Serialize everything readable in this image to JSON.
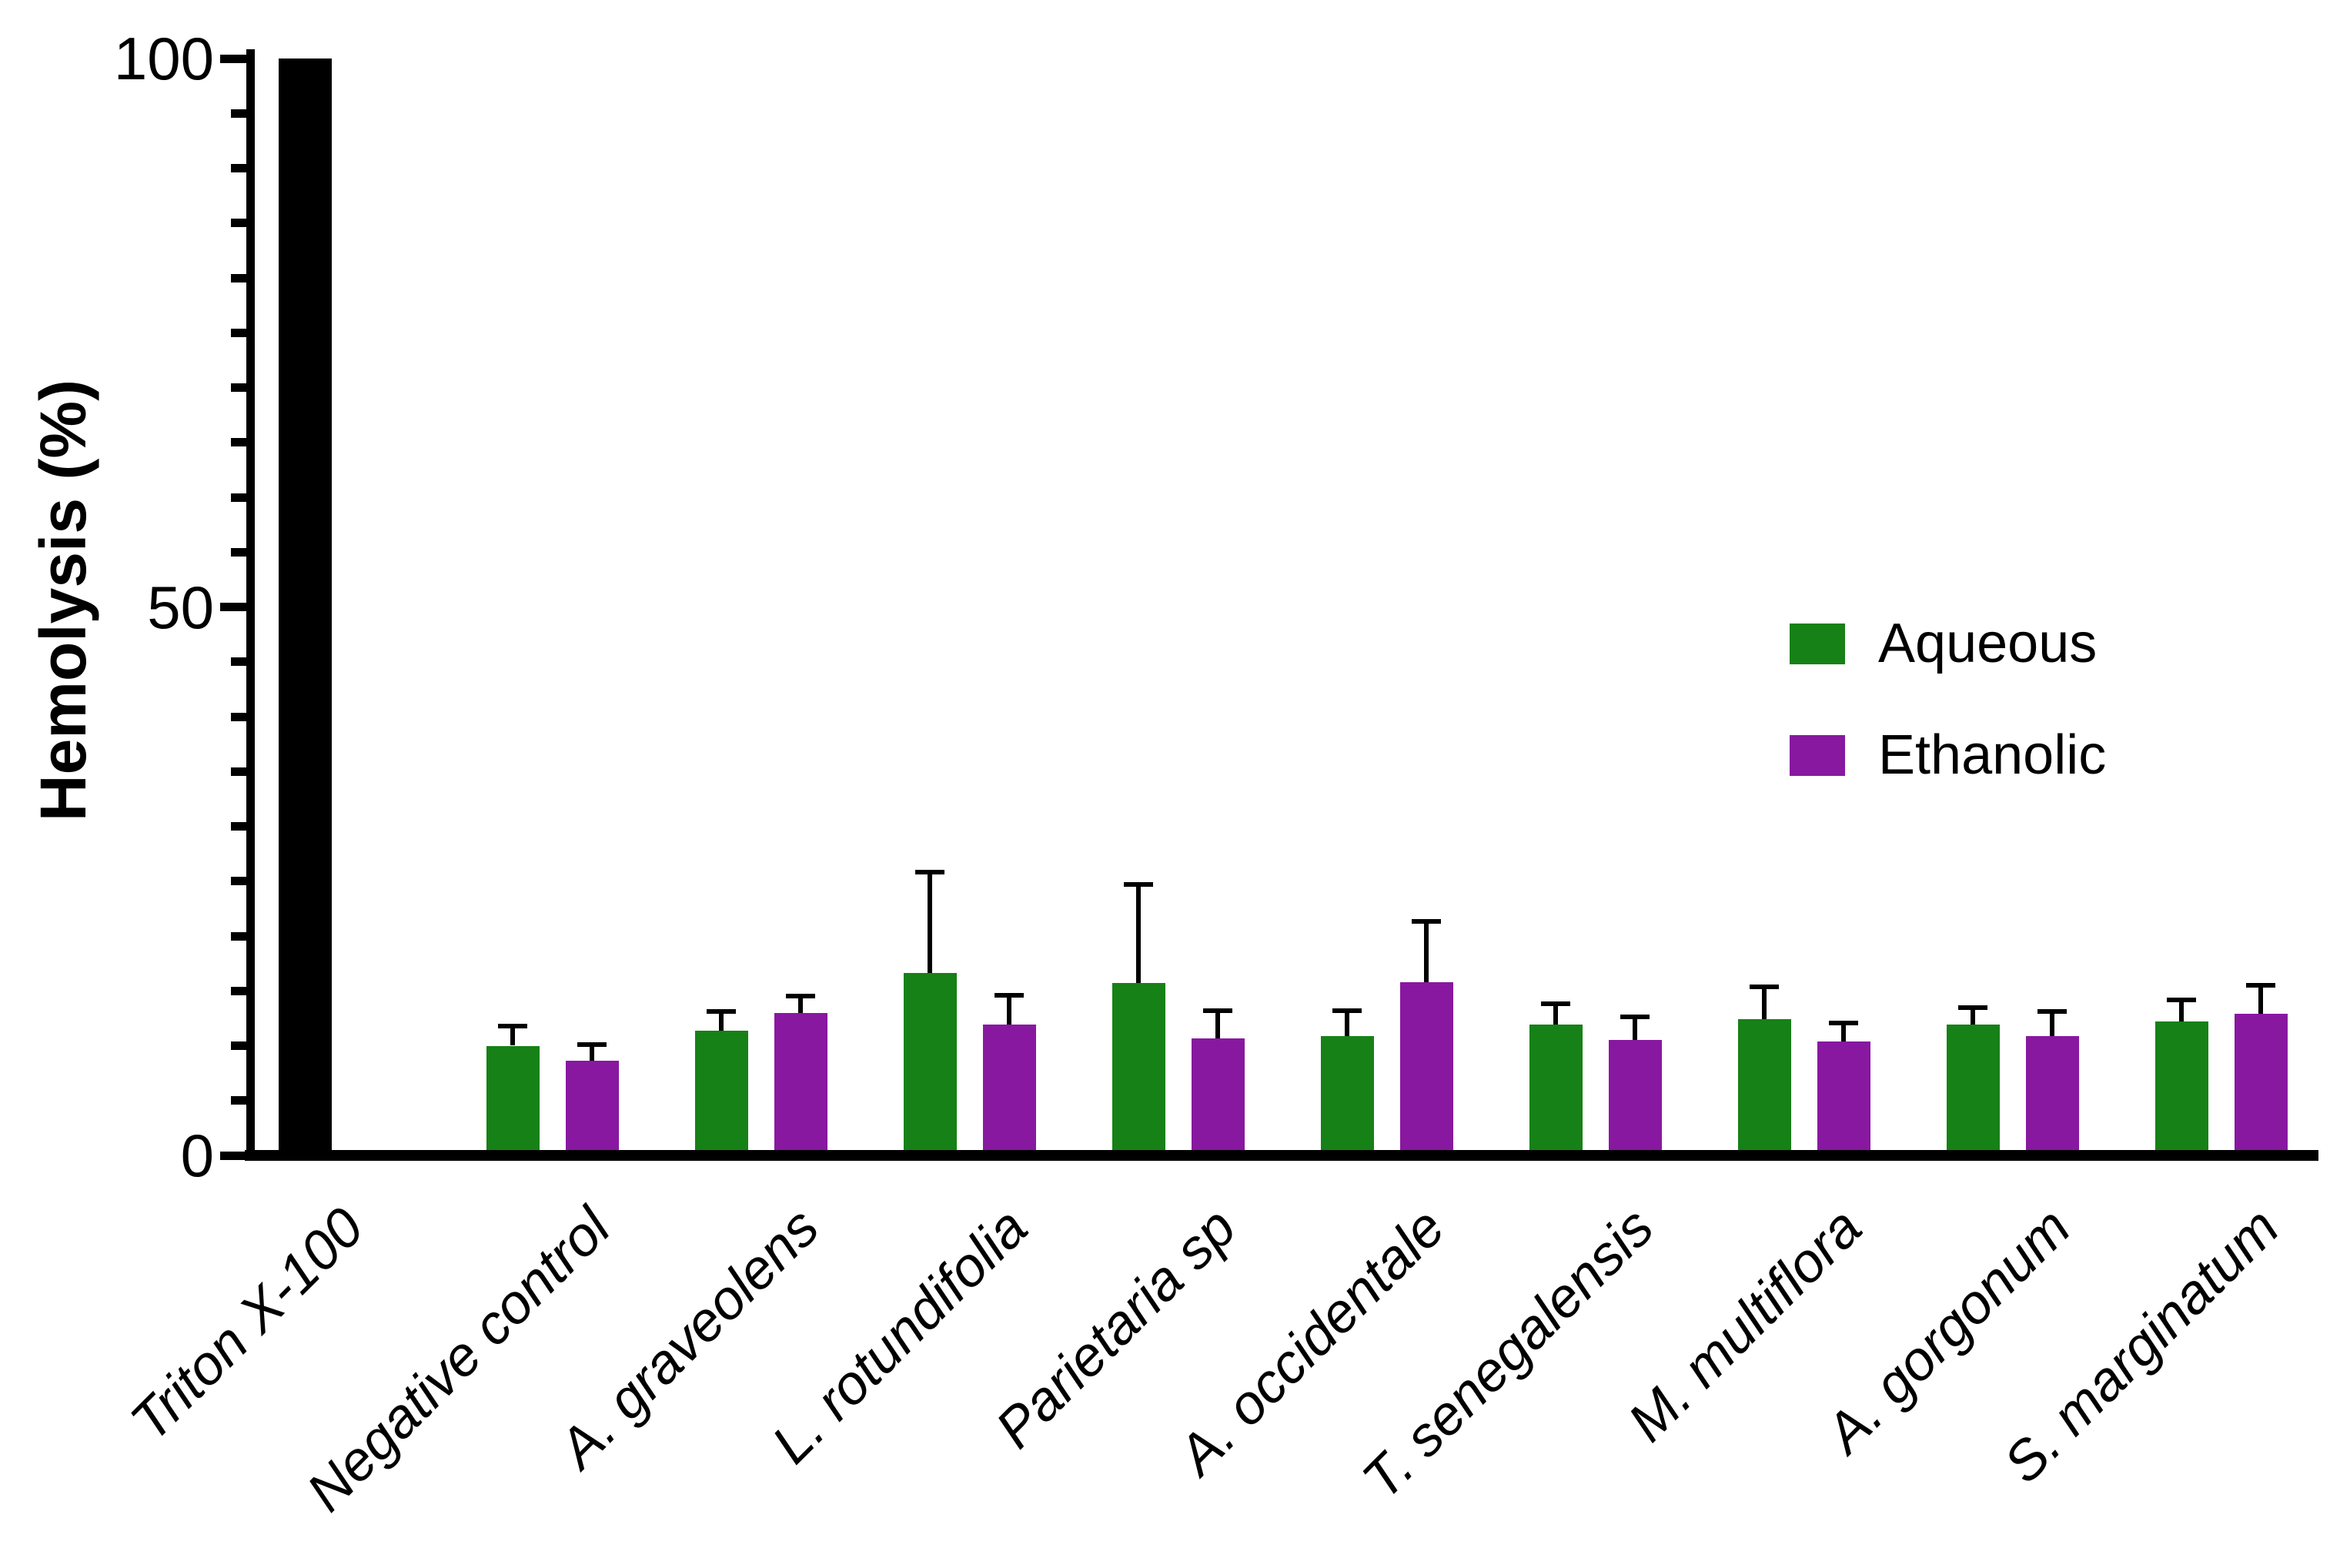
{
  "chart_data": {
    "type": "bar",
    "title": "",
    "xlabel": "",
    "ylabel": "Hemolysis (%)",
    "ylim": [
      0,
      100
    ],
    "ymajor_ticks": [
      0,
      50,
      100
    ],
    "ymajor_tick_labels": [
      "0",
      "50",
      "100"
    ],
    "yminor_tick_step": 5,
    "grid": false,
    "legend_position": "inside-right-upper",
    "categories": [
      "Triton X-100",
      "Negative control",
      "A. graveolens",
      "L. rotundifolia",
      "Parietaria sp",
      "A. occidentale",
      "T. senegalensis",
      "M. multiflora",
      "A. gorgonum",
      "S. marginatum"
    ],
    "positive_control": {
      "category": "Triton X-100",
      "value": 100,
      "error_plus": 0,
      "color": "#000000"
    },
    "series": [
      {
        "name": "Aqueous",
        "color": "#168116",
        "values": [
          null,
          10.0,
          11.4,
          16.6,
          15.7,
          10.9,
          11.9,
          12.4,
          11.9,
          12.2
        ],
        "errors_plus": [
          null,
          1.8,
          1.7,
          9.2,
          9.0,
          2.3,
          1.9,
          3.0,
          1.6,
          2.0
        ]
      },
      {
        "name": "Ethanolic",
        "color": "#8818A0",
        "values": [
          null,
          8.6,
          13.0,
          11.9,
          10.7,
          15.8,
          10.5,
          10.4,
          10.9,
          12.9
        ],
        "errors_plus": [
          null,
          1.5,
          1.5,
          2.7,
          2.5,
          5.5,
          2.1,
          1.7,
          2.2,
          2.6
        ]
      }
    ],
    "error_bar_direction": "plus-only",
    "axis_color": "#000000"
  }
}
